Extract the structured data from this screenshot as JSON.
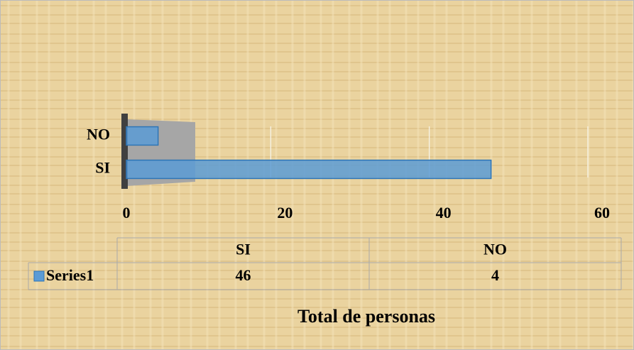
{
  "chart_data": {
    "type": "bar",
    "orientation": "horizontal",
    "title": "Total de personas",
    "categories": [
      "SI",
      "NO"
    ],
    "series": [
      {
        "name": "Series1",
        "color": "#5b9bd5",
        "values": [
          46,
          4
        ]
      }
    ],
    "xlim": [
      0,
      60
    ],
    "xticks": [
      0,
      20,
      40,
      60
    ],
    "grid": true,
    "data_table": true
  }
}
